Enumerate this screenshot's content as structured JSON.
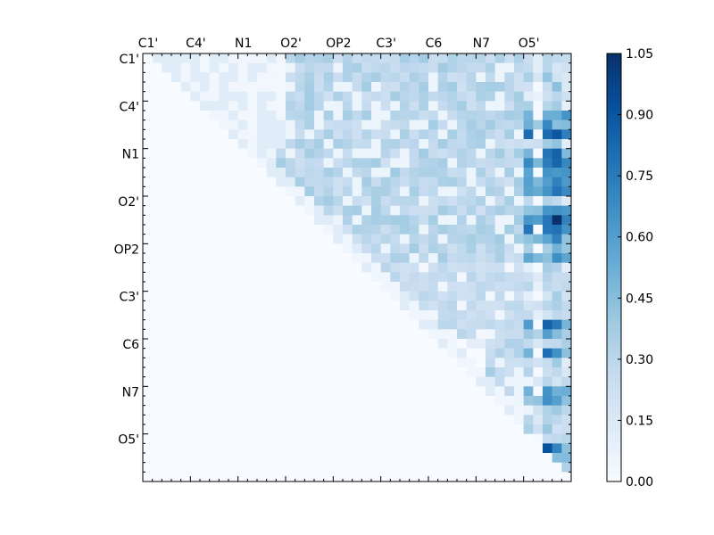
{
  "chart_data": {
    "type": "heatmap",
    "title": "",
    "xlabel": "",
    "ylabel": "",
    "grid": false,
    "x_tick_labels": [
      "C1'",
      "C4'",
      "N1",
      "O2'",
      "OP2",
      "C3'",
      "C6",
      "N7",
      "O5'"
    ],
    "y_tick_labels": [
      "C1'",
      "C4'",
      "N1",
      "O2'",
      "OP2",
      "C3'",
      "C6",
      "N7",
      "O5'"
    ],
    "x_tick_position": "top",
    "tick_label_every": 5,
    "matrix_size": 45,
    "upper_triangular": true,
    "colormap": "Blues",
    "colorbar": {
      "min": 0.0,
      "max": 1.05,
      "ticks": [
        "0.00",
        "0.15",
        "0.30",
        "0.45",
        "0.60",
        "0.75",
        "0.90",
        "1.05"
      ],
      "placement": "right"
    },
    "highlight_values": [
      {
        "row": 17,
        "col": 43,
        "value": 1.05
      },
      {
        "row": 8,
        "col": 43,
        "value": 0.9
      },
      {
        "row": 10,
        "col": 43,
        "value": 0.85
      },
      {
        "row": 41,
        "col": 42,
        "value": 0.92
      },
      {
        "row": 28,
        "col": 42,
        "value": 0.85
      },
      {
        "row": 31,
        "col": 42,
        "value": 0.8
      },
      {
        "row": 35,
        "col": 42,
        "value": 0.65
      }
    ]
  }
}
